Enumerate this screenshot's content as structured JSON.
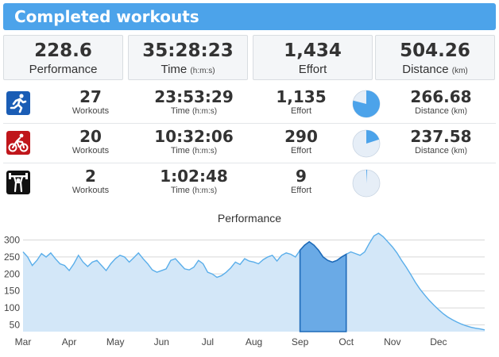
{
  "header": {
    "title": "Completed workouts"
  },
  "summary": [
    {
      "value": "228.6",
      "label": "Performance",
      "unit": ""
    },
    {
      "value": "35:28:23",
      "label": "Time",
      "unit": "(h:m:s)"
    },
    {
      "value": "1,434",
      "label": "Effort",
      "unit": ""
    },
    {
      "value": "504.26",
      "label": "Distance",
      "unit": "(km)"
    }
  ],
  "activities": [
    {
      "icon": "running-icon",
      "color": "#1a5db5",
      "workouts": "27",
      "workouts_label": "Workouts",
      "time": "23:53:29",
      "time_label": "Time",
      "time_unit": "(h:m:s)",
      "effort": "1,135",
      "effort_label": "Effort",
      "effort_share": 0.79,
      "distance": "266.68",
      "distance_label": "Distance",
      "distance_unit": "(km)"
    },
    {
      "icon": "cycling-icon",
      "color": "#c0161b",
      "workouts": "20",
      "workouts_label": "Workouts",
      "time": "10:32:06",
      "time_label": "Time",
      "time_unit": "(h:m:s)",
      "effort": "290",
      "effort_label": "Effort",
      "effort_share": 0.2,
      "distance": "237.58",
      "distance_label": "Distance",
      "distance_unit": "(km)"
    },
    {
      "icon": "weightlifting-icon",
      "color": "#111111",
      "workouts": "2",
      "workouts_label": "Workouts",
      "time": "1:02:48",
      "time_label": "Time",
      "time_unit": "(h:m:s)",
      "effort": "9",
      "effort_label": "Effort",
      "effort_share": 0.01,
      "distance": "",
      "distance_label": "",
      "distance_unit": ""
    }
  ],
  "colors": {
    "accent": "#4ca3ea",
    "chart_line": "#5aaeea",
    "chart_fill": "#d3e7f8",
    "highlight_fill": "#6aaae6",
    "highlight_line": "#1e6ab8",
    "pie_fill": "#4ca3ea",
    "pie_bg": "#e6eef7"
  },
  "chart_data": {
    "type": "area",
    "title": "Performance",
    "xlabel": "",
    "ylabel": "",
    "x_ticks": [
      "Mar",
      "Apr",
      "May",
      "Jun",
      "Jul",
      "Aug",
      "Sep",
      "Oct",
      "Nov",
      "Dec"
    ],
    "y_ticks": [
      50,
      100,
      150,
      200,
      250,
      300
    ],
    "ylim": [
      30,
      320
    ],
    "xlim": [
      0,
      10
    ],
    "grid": true,
    "highlight_range": [
      6.0,
      7.0
    ],
    "series": [
      {
        "x": [
          0.0,
          0.1,
          0.2,
          0.3,
          0.4,
          0.5,
          0.6,
          0.7,
          0.8,
          0.9,
          1.0,
          1.1,
          1.2,
          1.3,
          1.4,
          1.5,
          1.6,
          1.7,
          1.8,
          1.9,
          2.0,
          2.1,
          2.2,
          2.3,
          2.4,
          2.5,
          2.6,
          2.7,
          2.8,
          2.9,
          3.0,
          3.1,
          3.2,
          3.3,
          3.4,
          3.5,
          3.6,
          3.7,
          3.8,
          3.9,
          4.0,
          4.1,
          4.2,
          4.3,
          4.4,
          4.5,
          4.6,
          4.7,
          4.8,
          4.9,
          5.0,
          5.1,
          5.2,
          5.3,
          5.4,
          5.5,
          5.6,
          5.7,
          5.8,
          5.9,
          6.0,
          6.1,
          6.2,
          6.3,
          6.4,
          6.5,
          6.6,
          6.7,
          6.8,
          6.9,
          7.0,
          7.1,
          7.2,
          7.3,
          7.4,
          7.5,
          7.6,
          7.7,
          7.8,
          7.9,
          8.0,
          8.1,
          8.2,
          8.3,
          8.4,
          8.5,
          8.6,
          8.7,
          8.8,
          8.9,
          9.0,
          9.1,
          9.2,
          9.3,
          9.4,
          9.5,
          9.6,
          9.7,
          9.8,
          9.9,
          10.0
        ],
        "values": [
          265,
          250,
          225,
          240,
          260,
          250,
          262,
          245,
          230,
          225,
          210,
          230,
          255,
          235,
          222,
          235,
          240,
          225,
          210,
          230,
          245,
          255,
          250,
          235,
          248,
          262,
          245,
          230,
          212,
          205,
          210,
          215,
          240,
          245,
          230,
          215,
          212,
          220,
          240,
          230,
          205,
          200,
          190,
          195,
          205,
          218,
          235,
          228,
          245,
          238,
          235,
          230,
          242,
          250,
          255,
          238,
          255,
          262,
          258,
          250,
          270,
          285,
          295,
          285,
          270,
          250,
          240,
          235,
          240,
          250,
          258,
          265,
          260,
          255,
          265,
          290,
          312,
          320,
          310,
          295,
          280,
          262,
          240,
          220,
          198,
          175,
          155,
          138,
          122,
          108,
          95,
          83,
          73,
          65,
          58,
          52,
          47,
          43,
          40,
          38,
          35
        ]
      }
    ]
  }
}
